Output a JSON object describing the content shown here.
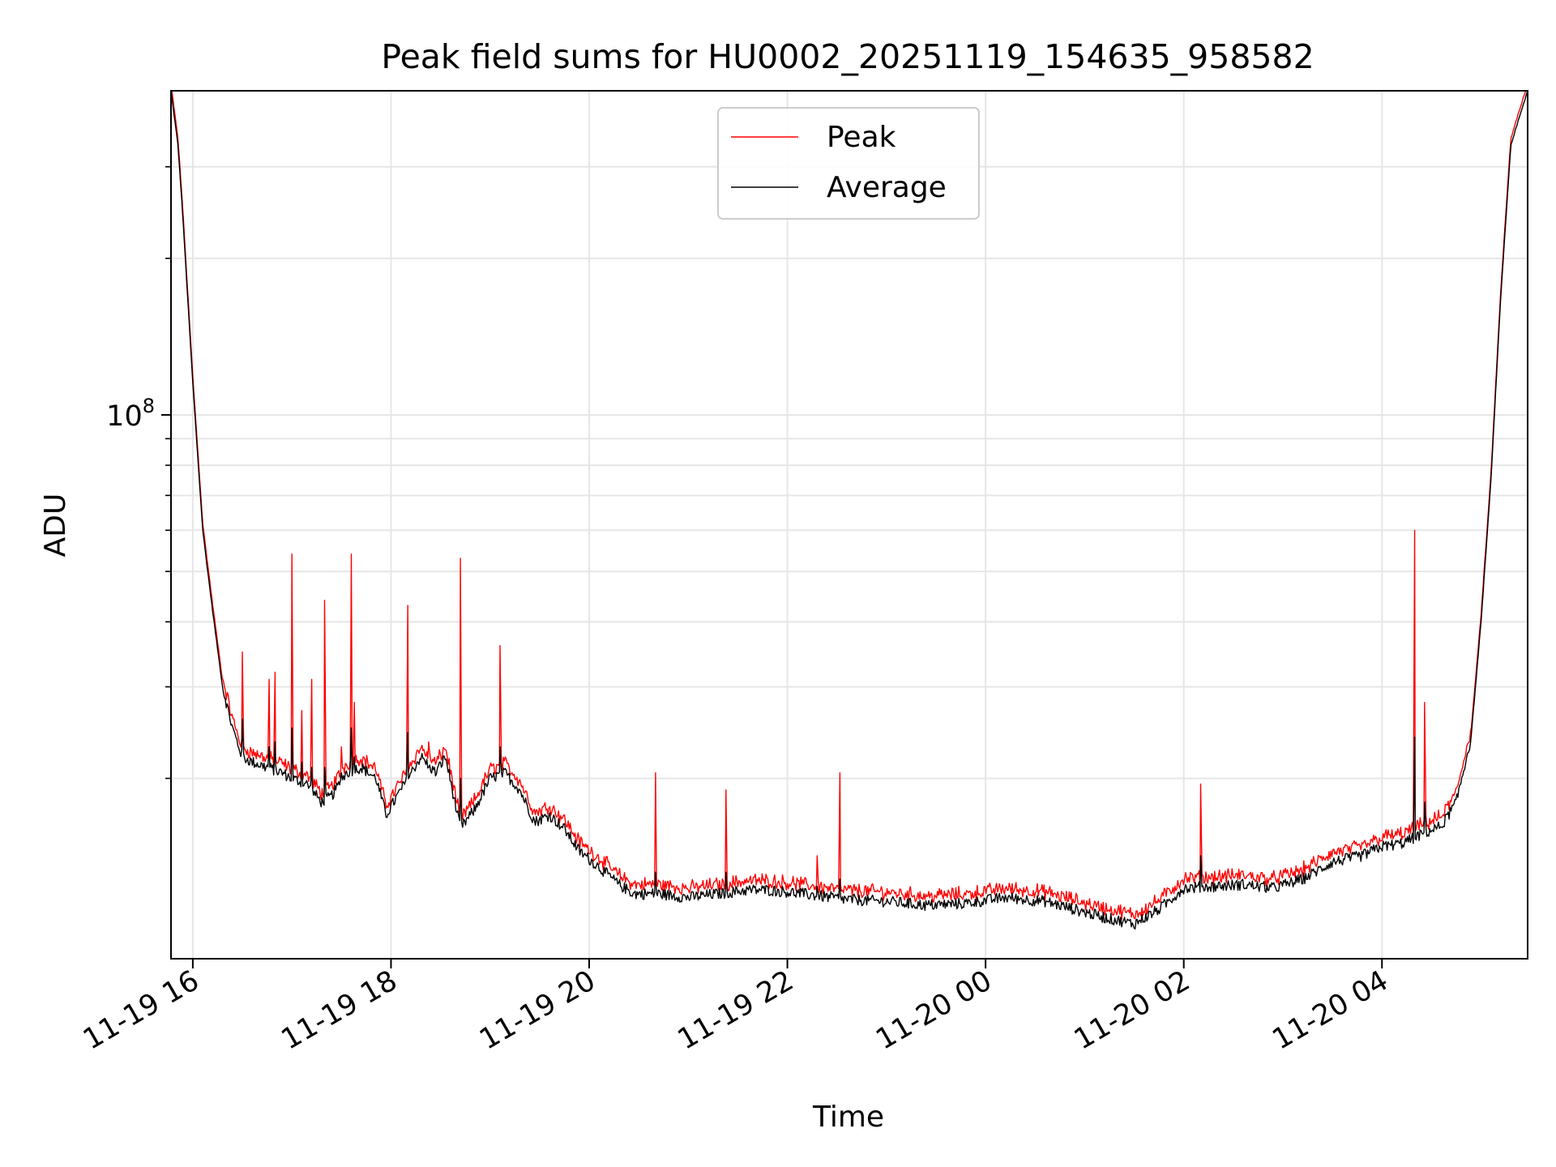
{
  "chart_data": {
    "type": "line",
    "title": "Peak field sums for HU0002_20251119_154635_958582",
    "xlabel": "Time",
    "ylabel": "ADU",
    "yscale": "log",
    "xlim_hours": [
      15.78,
      29.47
    ],
    "ylim": [
      9000000,
      420000000
    ],
    "grid": true,
    "legend_position": "upper center",
    "x_ticks": [
      {
        "hour": 16,
        "label": "11-19 16"
      },
      {
        "hour": 18,
        "label": "11-19 18"
      },
      {
        "hour": 20,
        "label": "11-19 20"
      },
      {
        "hour": 22,
        "label": "11-19 22"
      },
      {
        "hour": 24,
        "label": "11-20 00"
      },
      {
        "hour": 26,
        "label": "11-20 02"
      },
      {
        "hour": 28,
        "label": "11-20 04"
      }
    ],
    "y_major_tick": {
      "value": 100000000,
      "base": "10",
      "exponent": "8"
    },
    "y_minor_ticks": [
      20000000,
      30000000,
      40000000,
      50000000,
      60000000,
      70000000,
      80000000,
      90000000,
      200000000,
      300000000
    ],
    "series": [
      {
        "name": "Peak",
        "color": "#ff0000"
      },
      {
        "name": "Average",
        "color": "#000000"
      }
    ],
    "average_profile": {
      "hours": [
        15.78,
        15.85,
        15.9,
        16.0,
        16.1,
        16.2,
        16.3,
        16.4,
        16.5,
        16.6,
        16.75,
        16.9,
        17.0,
        17.15,
        17.3,
        17.4,
        17.55,
        17.7,
        17.85,
        17.95,
        18.1,
        18.3,
        18.45,
        18.55,
        18.7,
        18.85,
        19.0,
        19.15,
        19.3,
        19.45,
        19.6,
        19.75,
        19.9,
        20.1,
        20.3,
        20.45,
        20.7,
        21.0,
        21.3,
        21.6,
        21.8,
        22.0,
        22.3,
        22.6,
        23.0,
        23.4,
        23.8,
        24.2,
        24.6,
        24.9,
        25.2,
        25.5,
        25.75,
        26.0,
        26.3,
        26.6,
        26.9,
        27.2,
        27.5,
        27.8,
        28.0,
        28.2,
        28.4,
        28.6,
        28.75,
        28.9,
        29.0,
        29.1,
        29.2,
        29.3,
        29.47
      ],
      "values": [
        420000000,
        330000000,
        240000000,
        115000000,
        60000000,
        42000000,
        30000000,
        25000000,
        22000000,
        21500000,
        21000000,
        20500000,
        20000000,
        19500000,
        18000000,
        18500000,
        20500000,
        21000000,
        20000000,
        17000000,
        19000000,
        22000000,
        20500000,
        22000000,
        16000000,
        17500000,
        20000000,
        20500000,
        19000000,
        16500000,
        17000000,
        16000000,
        14500000,
        13500000,
        12500000,
        12000000,
        12000000,
        11800000,
        12000000,
        12200000,
        12200000,
        12100000,
        11900000,
        11700000,
        11600000,
        11400000,
        11500000,
        11800000,
        11600000,
        11200000,
        10800000,
        10500000,
        11200000,
        12300000,
        12400000,
        12500000,
        12300000,
        12800000,
        13800000,
        14200000,
        14800000,
        15000000,
        15600000,
        16200000,
        18000000,
        24000000,
        40000000,
        75000000,
        170000000,
        330000000,
        420000000
      ]
    },
    "spikes": [
      {
        "hour": 16.5,
        "peak": 35000000,
        "average": 26000000
      },
      {
        "hour": 16.77,
        "peak": 31000000,
        "average": 23000000
      },
      {
        "hour": 16.83,
        "peak": 32000000,
        "average": 23500000
      },
      {
        "hour": 17.0,
        "peak": 54000000,
        "average": 25000000
      },
      {
        "hour": 17.1,
        "peak": 27000000,
        "average": 21500000
      },
      {
        "hour": 17.2,
        "peak": 31000000,
        "average": 21000000
      },
      {
        "hour": 17.33,
        "peak": 44000000,
        "average": 21000000
      },
      {
        "hour": 17.5,
        "peak": 23000000,
        "average": 20500000
      },
      {
        "hour": 17.6,
        "peak": 54000000,
        "average": 25000000
      },
      {
        "hour": 17.63,
        "peak": 28000000,
        "average": 22000000
      },
      {
        "hour": 18.17,
        "peak": 43000000,
        "average": 24500000
      },
      {
        "hour": 18.38,
        "peak": 23500000,
        "average": 21000000
      },
      {
        "hour": 18.7,
        "peak": 53000000,
        "average": 20000000
      },
      {
        "hour": 19.1,
        "peak": 36000000,
        "average": 23000000
      },
      {
        "hour": 20.67,
        "peak": 20500000,
        "average": 13200000
      },
      {
        "hour": 21.38,
        "peak": 19000000,
        "average": 13200000
      },
      {
        "hour": 22.3,
        "peak": 14200000,
        "average": 12400000
      },
      {
        "hour": 22.53,
        "peak": 20500000,
        "average": 12800000
      },
      {
        "hour": 26.17,
        "peak": 19500000,
        "average": 14200000
      },
      {
        "hour": 28.33,
        "peak": 60000000,
        "average": 24000000
      },
      {
        "hour": 28.43,
        "peak": 28000000,
        "average": 18000000
      }
    ]
  }
}
